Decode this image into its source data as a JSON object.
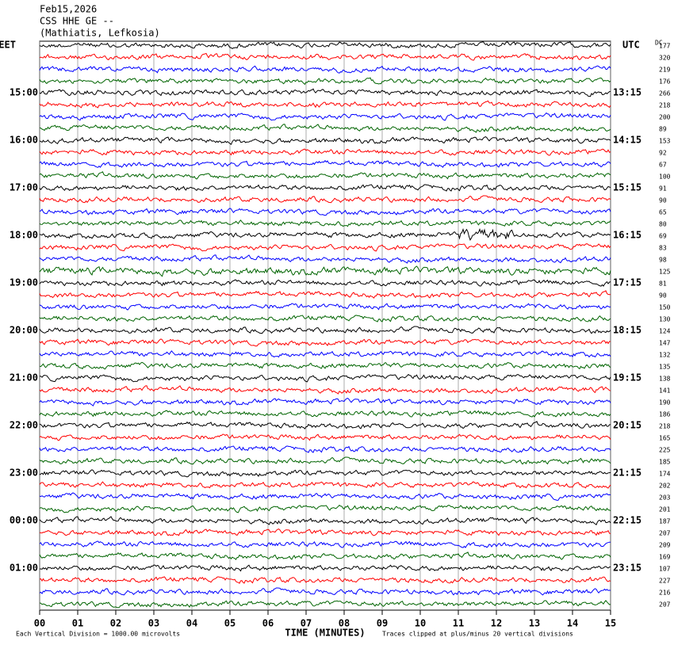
{
  "header": {
    "lines": [
      "Feb15,2026",
      "CSS HHE GE --",
      "(Mathiatis, Lefkosia)"
    ]
  },
  "left_axis": {
    "title": "EET",
    "labels": [
      "15:00",
      "16:00",
      "17:00",
      "18:00",
      "19:00",
      "20:00",
      "21:00",
      "22:00",
      "23:00",
      "00:00",
      "01:00"
    ]
  },
  "right_axis": {
    "title": "UTC",
    "labels": [
      "13:15",
      "14:15",
      "15:15",
      "16:15",
      "17:15",
      "18:15",
      "19:15",
      "20:15",
      "21:15",
      "22:15",
      "23:15"
    ]
  },
  "dc": {
    "title": "DC",
    "values": [
      177,
      320,
      219,
      176,
      266,
      218,
      200,
      89,
      153,
      92,
      67,
      100,
      91,
      90,
      65,
      80,
      69,
      83,
      98,
      125,
      81,
      90,
      150,
      130,
      124,
      147,
      132,
      135,
      138,
      141,
      190,
      186,
      218,
      165,
      225,
      185,
      174,
      202,
      203,
      201,
      187,
      207,
      209,
      169,
      107,
      227,
      216,
      207
    ]
  },
  "x_axis": {
    "ticks": [
      "00",
      "01",
      "02",
      "03",
      "04",
      "05",
      "06",
      "07",
      "08",
      "09",
      "10",
      "11",
      "12",
      "13",
      "14",
      "15"
    ],
    "title": "TIME (MINUTES)"
  },
  "footer": {
    "left": "Each Vertical Division = 1000.00 microvolts",
    "right": "Traces clipped at plus/minus 20 vertical divisions"
  },
  "trace_colors": [
    "#000000",
    "#ff0000",
    "#0000ff",
    "#006400"
  ]
}
